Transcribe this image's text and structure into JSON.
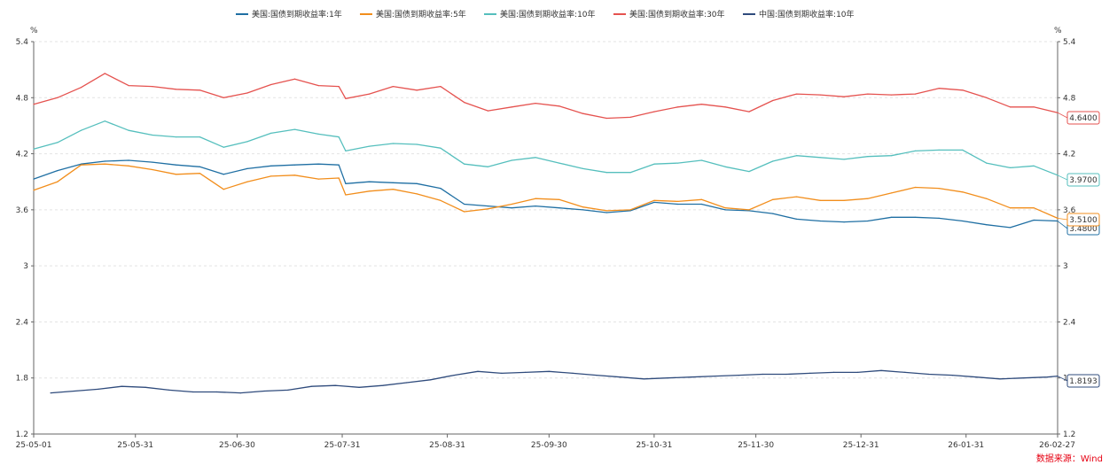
{
  "chart_data": {
    "type": "line",
    "y_unit_left": "%",
    "y_unit_right": "%",
    "ylim": [
      1.2,
      5.4
    ],
    "yticks": [
      "1.2",
      "1.8",
      "2.4",
      "3",
      "3.6",
      "4.2",
      "4.8",
      "5.4"
    ],
    "xlim": [
      "2025-05-01",
      "2026-02-27"
    ],
    "xticks": [
      "25-05-01",
      "25-05-31",
      "25-06-30",
      "25-07-31",
      "25-08-31",
      "25-09-30",
      "25-10-31",
      "25-11-30",
      "25-12-31",
      "26-01-31",
      "26-02-27"
    ],
    "grid": true,
    "legend_position": "top",
    "series": [
      {
        "name": "美国:国债到期收益率:1年",
        "color": "#1f6fa3",
        "end_label": "3.4800",
        "points": [
          [
            "2025-05-01",
            3.93
          ],
          [
            "2025-05-08",
            4.02
          ],
          [
            "2025-05-15",
            4.09
          ],
          [
            "2025-05-22",
            4.12
          ],
          [
            "2025-05-29",
            4.13
          ],
          [
            "2025-06-05",
            4.11
          ],
          [
            "2025-06-12",
            4.08
          ],
          [
            "2025-06-19",
            4.06
          ],
          [
            "2025-06-26",
            3.98
          ],
          [
            "2025-07-03",
            4.04
          ],
          [
            "2025-07-10",
            4.07
          ],
          [
            "2025-07-17",
            4.08
          ],
          [
            "2025-07-24",
            4.09
          ],
          [
            "2025-07-30",
            4.08
          ],
          [
            "2025-08-01",
            3.88
          ],
          [
            "2025-08-08",
            3.9
          ],
          [
            "2025-08-15",
            3.89
          ],
          [
            "2025-08-22",
            3.88
          ],
          [
            "2025-08-29",
            3.83
          ],
          [
            "2025-09-05",
            3.66
          ],
          [
            "2025-09-12",
            3.64
          ],
          [
            "2025-09-19",
            3.62
          ],
          [
            "2025-09-26",
            3.64
          ],
          [
            "2025-10-03",
            3.62
          ],
          [
            "2025-10-10",
            3.6
          ],
          [
            "2025-10-17",
            3.57
          ],
          [
            "2025-10-24",
            3.59
          ],
          [
            "2025-10-31",
            3.68
          ],
          [
            "2025-11-07",
            3.66
          ],
          [
            "2025-11-14",
            3.66
          ],
          [
            "2025-11-21",
            3.6
          ],
          [
            "2025-11-28",
            3.59
          ],
          [
            "2025-12-05",
            3.56
          ],
          [
            "2025-12-12",
            3.5
          ],
          [
            "2025-12-19",
            3.48
          ],
          [
            "2025-12-26",
            3.47
          ],
          [
            "2026-01-02",
            3.48
          ],
          [
            "2026-01-09",
            3.52
          ],
          [
            "2026-01-16",
            3.52
          ],
          [
            "2026-01-23",
            3.51
          ],
          [
            "2026-01-30",
            3.48
          ],
          [
            "2026-02-06",
            3.44
          ],
          [
            "2026-02-13",
            3.41
          ],
          [
            "2026-02-20",
            3.49
          ],
          [
            "2026-02-27",
            3.48
          ]
        ]
      },
      {
        "name": "美国:国债到期收益率:5年",
        "color": "#f28e1c",
        "end_label": "3.5100",
        "points": [
          [
            "2025-05-01",
            3.81
          ],
          [
            "2025-05-08",
            3.9
          ],
          [
            "2025-05-15",
            4.08
          ],
          [
            "2025-05-22",
            4.09
          ],
          [
            "2025-05-29",
            4.07
          ],
          [
            "2025-06-05",
            4.03
          ],
          [
            "2025-06-12",
            3.98
          ],
          [
            "2025-06-19",
            3.99
          ],
          [
            "2025-06-26",
            3.82
          ],
          [
            "2025-07-03",
            3.9
          ],
          [
            "2025-07-10",
            3.96
          ],
          [
            "2025-07-17",
            3.97
          ],
          [
            "2025-07-24",
            3.93
          ],
          [
            "2025-07-30",
            3.94
          ],
          [
            "2025-08-01",
            3.76
          ],
          [
            "2025-08-08",
            3.8
          ],
          [
            "2025-08-15",
            3.82
          ],
          [
            "2025-08-22",
            3.77
          ],
          [
            "2025-08-29",
            3.7
          ],
          [
            "2025-09-05",
            3.58
          ],
          [
            "2025-09-12",
            3.61
          ],
          [
            "2025-09-19",
            3.66
          ],
          [
            "2025-09-26",
            3.72
          ],
          [
            "2025-10-03",
            3.71
          ],
          [
            "2025-10-10",
            3.63
          ],
          [
            "2025-10-17",
            3.59
          ],
          [
            "2025-10-24",
            3.6
          ],
          [
            "2025-10-31",
            3.7
          ],
          [
            "2025-11-07",
            3.69
          ],
          [
            "2025-11-14",
            3.71
          ],
          [
            "2025-11-21",
            3.62
          ],
          [
            "2025-11-28",
            3.6
          ],
          [
            "2025-12-05",
            3.71
          ],
          [
            "2025-12-12",
            3.74
          ],
          [
            "2025-12-19",
            3.7
          ],
          [
            "2025-12-26",
            3.7
          ],
          [
            "2026-01-02",
            3.72
          ],
          [
            "2026-01-09",
            3.78
          ],
          [
            "2026-01-16",
            3.84
          ],
          [
            "2026-01-23",
            3.83
          ],
          [
            "2026-01-30",
            3.79
          ],
          [
            "2026-02-06",
            3.72
          ],
          [
            "2026-02-13",
            3.62
          ],
          [
            "2026-02-20",
            3.62
          ],
          [
            "2026-02-27",
            3.51
          ]
        ]
      },
      {
        "name": "美国:国债到期收益率:10年",
        "color": "#55bfbd",
        "end_label": "3.9700",
        "points": [
          [
            "2025-05-01",
            4.25
          ],
          [
            "2025-05-08",
            4.32
          ],
          [
            "2025-05-15",
            4.45
          ],
          [
            "2025-05-22",
            4.55
          ],
          [
            "2025-05-29",
            4.45
          ],
          [
            "2025-06-05",
            4.4
          ],
          [
            "2025-06-12",
            4.38
          ],
          [
            "2025-06-19",
            4.38
          ],
          [
            "2025-06-26",
            4.27
          ],
          [
            "2025-07-03",
            4.33
          ],
          [
            "2025-07-10",
            4.42
          ],
          [
            "2025-07-17",
            4.46
          ],
          [
            "2025-07-24",
            4.41
          ],
          [
            "2025-07-30",
            4.38
          ],
          [
            "2025-08-01",
            4.23
          ],
          [
            "2025-08-08",
            4.28
          ],
          [
            "2025-08-15",
            4.31
          ],
          [
            "2025-08-22",
            4.3
          ],
          [
            "2025-08-29",
            4.26
          ],
          [
            "2025-09-05",
            4.09
          ],
          [
            "2025-09-12",
            4.06
          ],
          [
            "2025-09-19",
            4.13
          ],
          [
            "2025-09-26",
            4.16
          ],
          [
            "2025-10-03",
            4.1
          ],
          [
            "2025-10-10",
            4.04
          ],
          [
            "2025-10-17",
            4.0
          ],
          [
            "2025-10-24",
            4.0
          ],
          [
            "2025-10-31",
            4.09
          ],
          [
            "2025-11-07",
            4.1
          ],
          [
            "2025-11-14",
            4.13
          ],
          [
            "2025-11-21",
            4.06
          ],
          [
            "2025-11-28",
            4.01
          ],
          [
            "2025-12-05",
            4.12
          ],
          [
            "2025-12-12",
            4.18
          ],
          [
            "2025-12-19",
            4.16
          ],
          [
            "2025-12-26",
            4.14
          ],
          [
            "2026-01-02",
            4.17
          ],
          [
            "2026-01-09",
            4.18
          ],
          [
            "2026-01-16",
            4.23
          ],
          [
            "2026-01-23",
            4.24
          ],
          [
            "2026-01-30",
            4.24
          ],
          [
            "2026-02-06",
            4.1
          ],
          [
            "2026-02-13",
            4.05
          ],
          [
            "2026-02-20",
            4.07
          ],
          [
            "2026-02-27",
            3.97
          ]
        ]
      },
      {
        "name": "美国:国债到期收益率:30年",
        "color": "#e5524f",
        "end_label": "4.6400",
        "points": [
          [
            "2025-05-01",
            4.73
          ],
          [
            "2025-05-08",
            4.8
          ],
          [
            "2025-05-15",
            4.91
          ],
          [
            "2025-05-22",
            5.06
          ],
          [
            "2025-05-29",
            4.93
          ],
          [
            "2025-06-05",
            4.92
          ],
          [
            "2025-06-12",
            4.89
          ],
          [
            "2025-06-19",
            4.88
          ],
          [
            "2025-06-26",
            4.8
          ],
          [
            "2025-07-03",
            4.85
          ],
          [
            "2025-07-10",
            4.94
          ],
          [
            "2025-07-17",
            5.0
          ],
          [
            "2025-07-24",
            4.93
          ],
          [
            "2025-07-30",
            4.92
          ],
          [
            "2025-08-01",
            4.79
          ],
          [
            "2025-08-08",
            4.84
          ],
          [
            "2025-08-15",
            4.92
          ],
          [
            "2025-08-22",
            4.88
          ],
          [
            "2025-08-29",
            4.92
          ],
          [
            "2025-09-05",
            4.75
          ],
          [
            "2025-09-12",
            4.66
          ],
          [
            "2025-09-19",
            4.7
          ],
          [
            "2025-09-26",
            4.74
          ],
          [
            "2025-10-03",
            4.71
          ],
          [
            "2025-10-10",
            4.63
          ],
          [
            "2025-10-17",
            4.58
          ],
          [
            "2025-10-24",
            4.59
          ],
          [
            "2025-10-31",
            4.65
          ],
          [
            "2025-11-07",
            4.7
          ],
          [
            "2025-11-14",
            4.73
          ],
          [
            "2025-11-21",
            4.7
          ],
          [
            "2025-11-28",
            4.65
          ],
          [
            "2025-12-05",
            4.77
          ],
          [
            "2025-12-12",
            4.84
          ],
          [
            "2025-12-19",
            4.83
          ],
          [
            "2025-12-26",
            4.81
          ],
          [
            "2026-01-02",
            4.84
          ],
          [
            "2026-01-09",
            4.83
          ],
          [
            "2026-01-16",
            4.84
          ],
          [
            "2026-01-23",
            4.9
          ],
          [
            "2026-01-30",
            4.88
          ],
          [
            "2026-02-06",
            4.8
          ],
          [
            "2026-02-13",
            4.7
          ],
          [
            "2026-02-20",
            4.7
          ],
          [
            "2026-02-27",
            4.64
          ]
        ]
      },
      {
        "name": "中国:国债到期收益率:10年",
        "color": "#2f4b7c",
        "end_label": "1.8193",
        "points": [
          [
            "2025-05-06",
            1.64
          ],
          [
            "2025-05-13",
            1.66
          ],
          [
            "2025-05-20",
            1.68
          ],
          [
            "2025-05-27",
            1.71
          ],
          [
            "2025-06-03",
            1.7
          ],
          [
            "2025-06-10",
            1.67
          ],
          [
            "2025-06-17",
            1.65
          ],
          [
            "2025-06-24",
            1.65
          ],
          [
            "2025-07-01",
            1.64
          ],
          [
            "2025-07-08",
            1.66
          ],
          [
            "2025-07-15",
            1.67
          ],
          [
            "2025-07-22",
            1.71
          ],
          [
            "2025-07-29",
            1.72
          ],
          [
            "2025-08-05",
            1.7
          ],
          [
            "2025-08-12",
            1.72
          ],
          [
            "2025-08-19",
            1.75
          ],
          [
            "2025-08-26",
            1.78
          ],
          [
            "2025-09-02",
            1.83
          ],
          [
            "2025-09-09",
            1.87
          ],
          [
            "2025-09-16",
            1.85
          ],
          [
            "2025-09-23",
            1.86
          ],
          [
            "2025-09-30",
            1.87
          ],
          [
            "2025-10-07",
            1.85
          ],
          [
            "2025-10-14",
            1.83
          ],
          [
            "2025-10-21",
            1.81
          ],
          [
            "2025-10-28",
            1.79
          ],
          [
            "2025-11-04",
            1.8
          ],
          [
            "2025-11-11",
            1.81
          ],
          [
            "2025-11-18",
            1.82
          ],
          [
            "2025-11-25",
            1.83
          ],
          [
            "2025-12-02",
            1.84
          ],
          [
            "2025-12-09",
            1.84
          ],
          [
            "2025-12-16",
            1.85
          ],
          [
            "2025-12-23",
            1.86
          ],
          [
            "2025-12-30",
            1.86
          ],
          [
            "2026-01-06",
            1.88
          ],
          [
            "2026-01-13",
            1.86
          ],
          [
            "2026-01-20",
            1.84
          ],
          [
            "2026-01-27",
            1.83
          ],
          [
            "2026-02-03",
            1.81
          ],
          [
            "2026-02-10",
            1.79
          ],
          [
            "2026-02-17",
            1.8
          ],
          [
            "2026-02-24",
            1.81
          ],
          [
            "2026-02-27",
            1.82
          ]
        ]
      }
    ]
  },
  "source": "数据来源：Wind"
}
